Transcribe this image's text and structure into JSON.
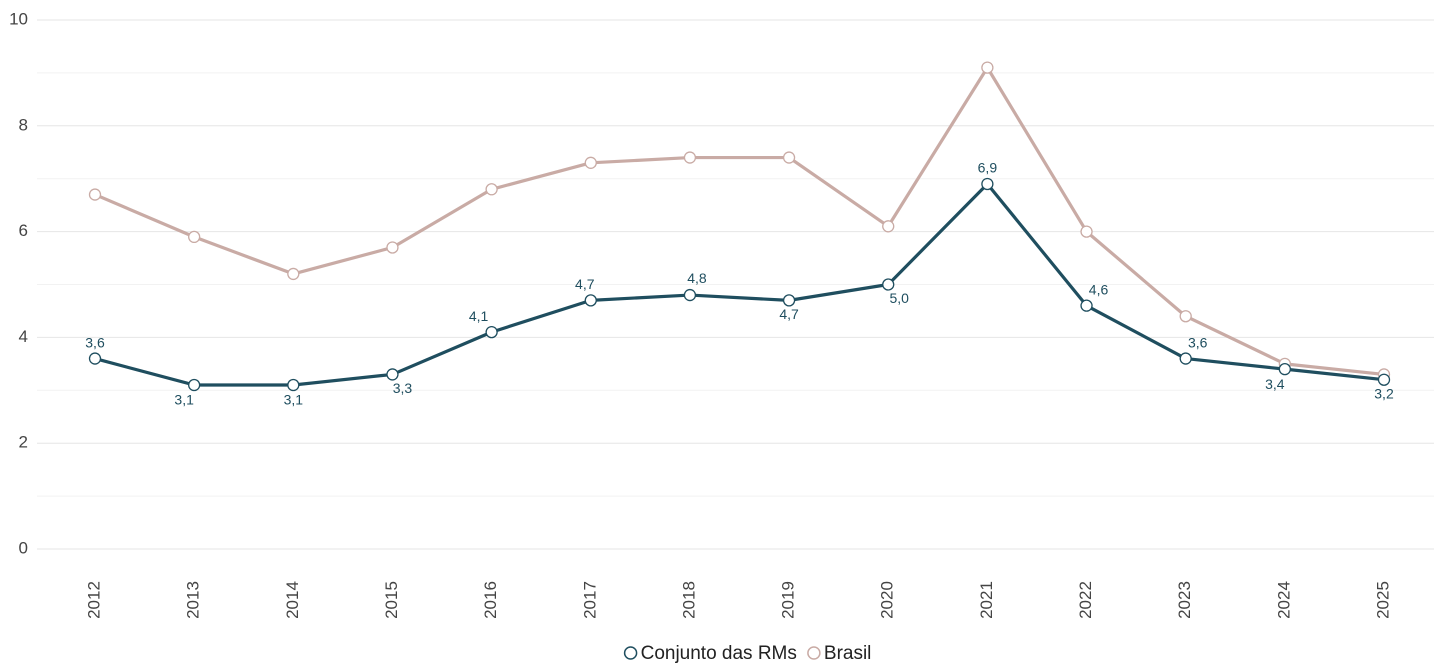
{
  "chart_data": {
    "type": "line",
    "categories": [
      "2012",
      "2013",
      "2014",
      "2015",
      "2016",
      "2017",
      "2018",
      "2019",
      "2020",
      "2021",
      "2022",
      "2023",
      "2024",
      "2025"
    ],
    "series": [
      {
        "name": "Conjunto das RMs",
        "color": "#1f4e5f",
        "values": [
          3.6,
          3.1,
          3.1,
          3.3,
          4.1,
          4.7,
          4.8,
          4.7,
          5.0,
          6.9,
          4.6,
          3.6,
          3.4,
          3.2
        ],
        "value_labels": [
          "3,6",
          "3,1",
          "3,1",
          "3,3",
          "4,1",
          "4,7",
          "4,8",
          "4,7",
          "5,0",
          "6,9",
          "4,6",
          "3,6",
          "3,4",
          "3,2"
        ]
      },
      {
        "name": "Brasil",
        "color": "#c9aba5",
        "values": [
          6.7,
          5.9,
          5.2,
          5.7,
          6.8,
          7.3,
          7.4,
          7.4,
          6.1,
          9.1,
          6.0,
          4.4,
          3.5,
          3.3
        ]
      }
    ],
    "ylim": [
      0,
      10
    ],
    "yticks": [
      0,
      2,
      4,
      6,
      8,
      10
    ],
    "minor_yticks": [
      1,
      3,
      5,
      7,
      9
    ],
    "grid": true,
    "legend": "bottom"
  }
}
